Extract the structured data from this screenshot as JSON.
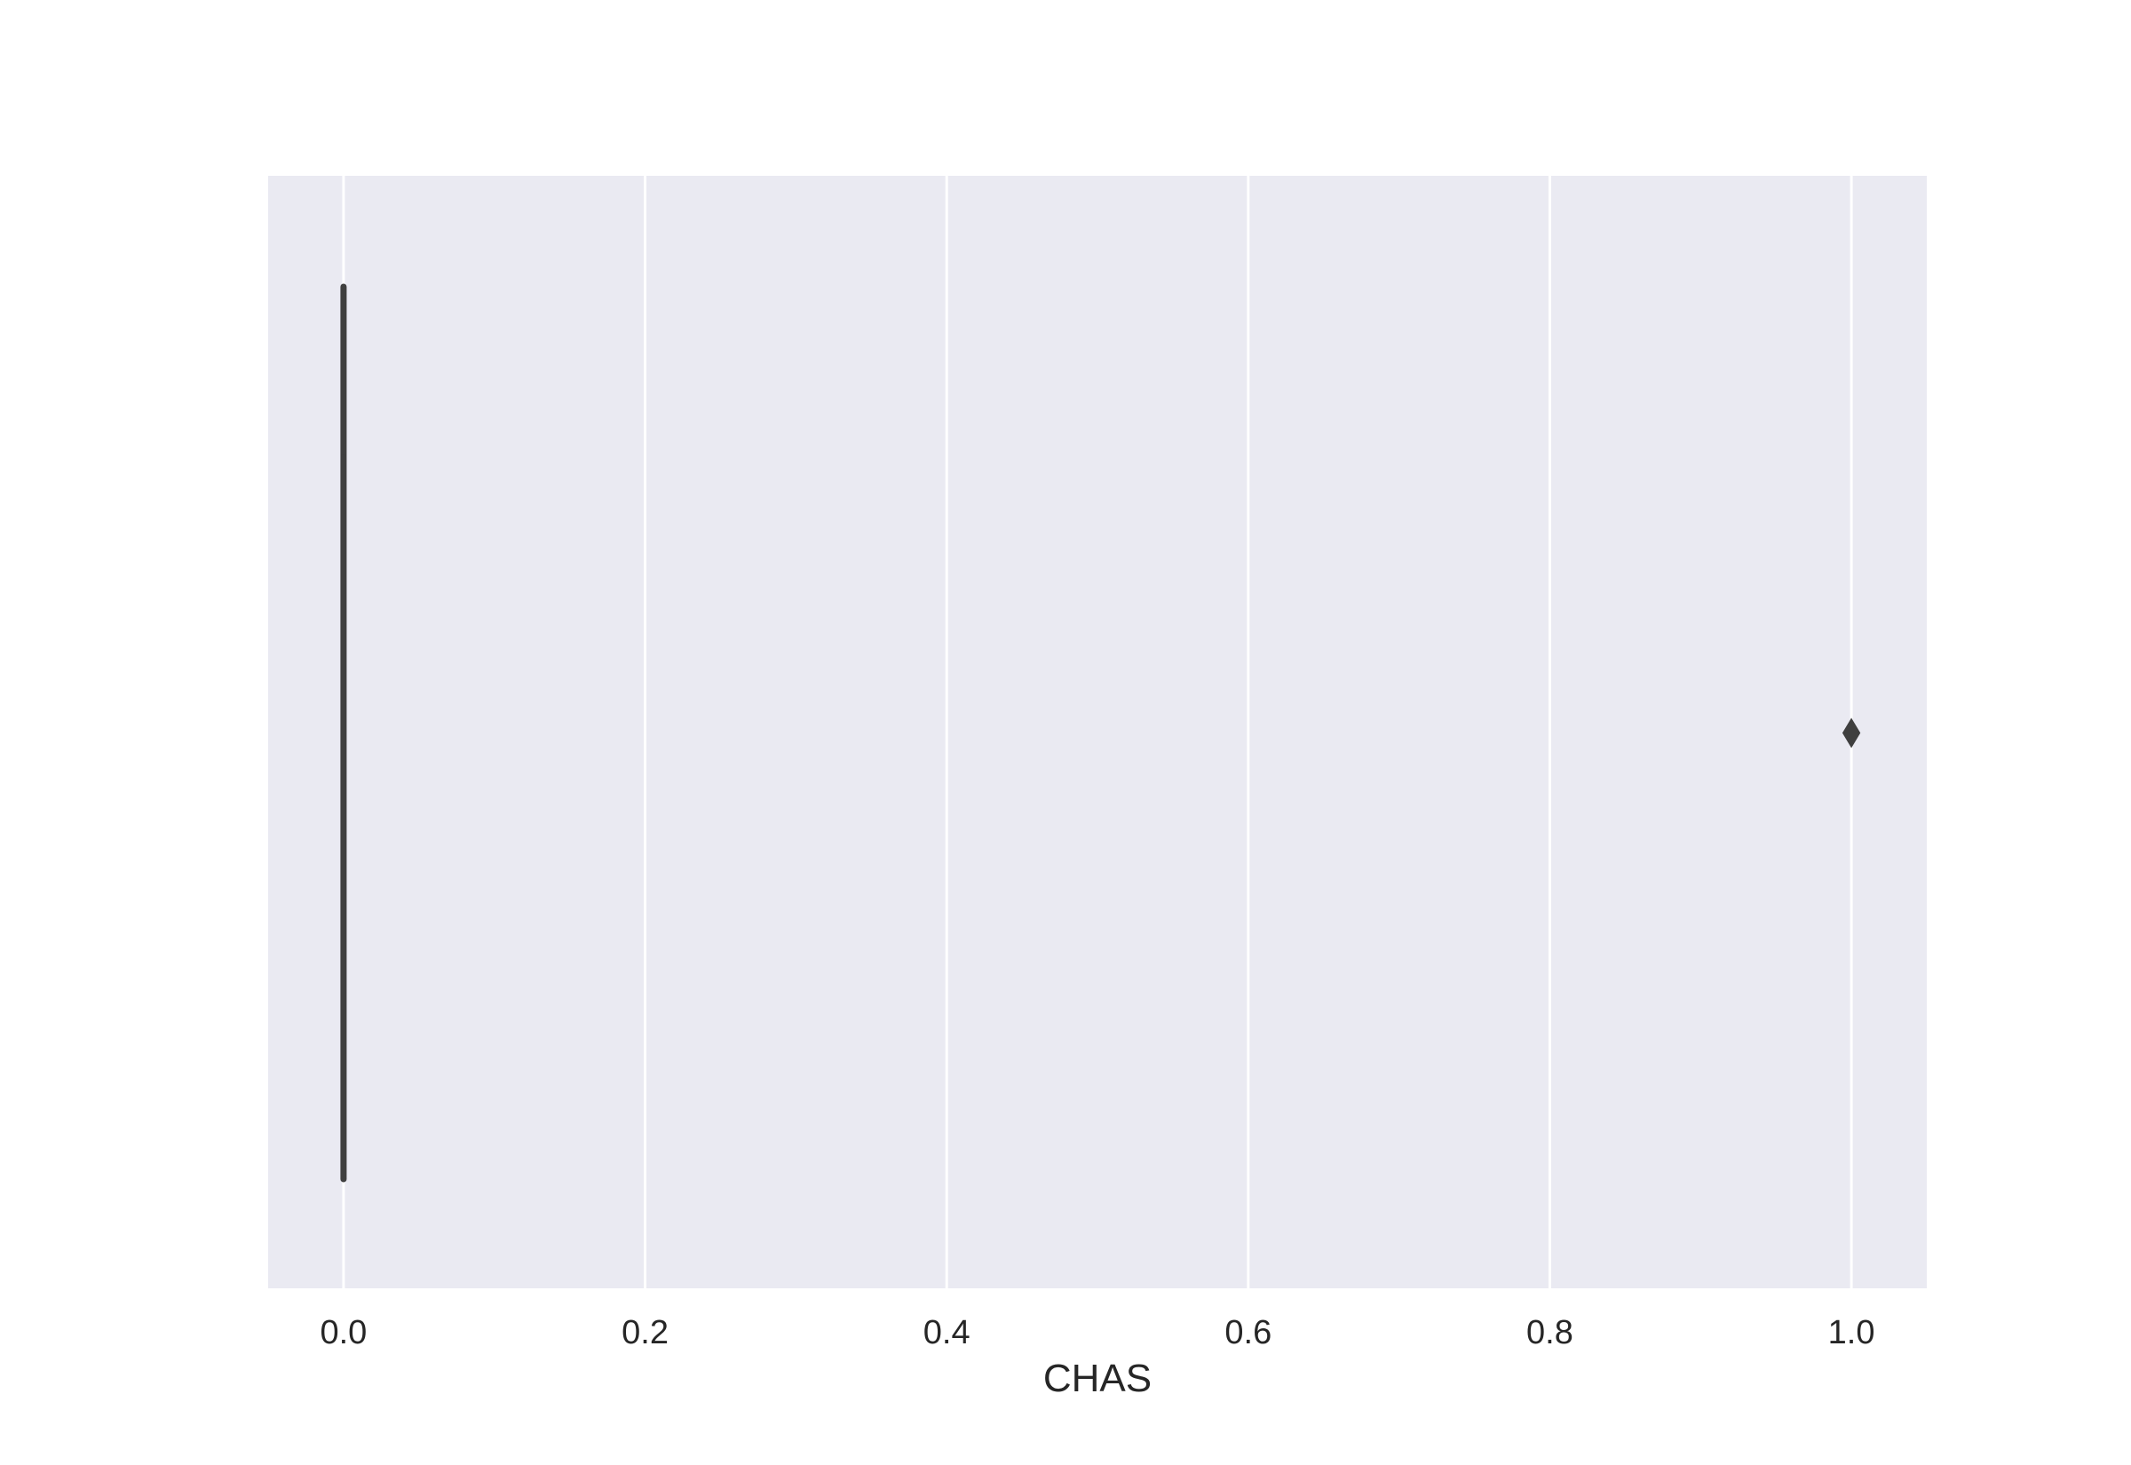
{
  "chart_data": {
    "type": "box",
    "orientation": "horizontal",
    "xlabel": "CHAS",
    "ylabel": "",
    "title": "",
    "xlim": [
      -0.05,
      1.05
    ],
    "xticks": [
      0.0,
      0.2,
      0.4,
      0.6,
      0.8,
      1.0
    ],
    "xtick_labels": [
      "0.0",
      "0.2",
      "0.4",
      "0.6",
      "0.8",
      "1.0"
    ],
    "grid": true,
    "series": [
      {
        "min": 0.0,
        "q1": 0.0,
        "median": 0.0,
        "q3": 0.0,
        "max": 0.0,
        "outliers": [
          1.0
        ]
      }
    ]
  },
  "colors": {
    "plot_background": "#eaeaf2",
    "grid": "#ffffff",
    "box_line": "#3f3f3f",
    "text": "#262626"
  }
}
